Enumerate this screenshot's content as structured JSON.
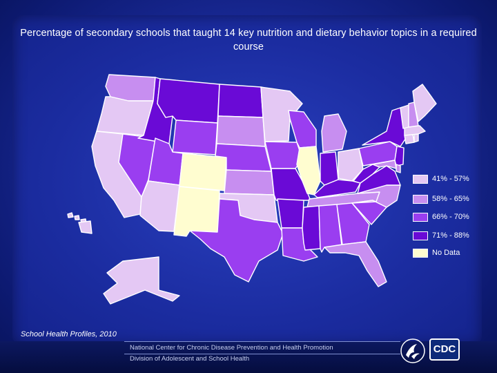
{
  "slide": {
    "title": "Percentage of secondary schools that taught 14 key nutrition and dietary behavior topics in a required course",
    "source": "School Health Profiles, 2010",
    "footer_line1": "National Center for Chronic Disease Prevention and Health Promotion",
    "footer_line2": "Division of Adolescent and School Health",
    "logo_text": "CDC"
  },
  "legend": [
    {
      "label": "41% - 57%",
      "color": "#e4c8f4"
    },
    {
      "label": "58% - 65%",
      "color": "#c78ef0"
    },
    {
      "label": "66% - 70%",
      "color": "#9a3ef0"
    },
    {
      "label": "71% - 88%",
      "color": "#6a0ad6"
    },
    {
      "label": "No Data",
      "color": "#fffdd0"
    }
  ],
  "colors": {
    "c1": "#e4c8f4",
    "c2": "#c78ef0",
    "c3": "#9a3ef0",
    "c4": "#6a0ad6",
    "nodata": "#fffdd0"
  },
  "state_categories": {
    "WA": "c2",
    "OR": "c1",
    "CA": "c1",
    "NV": "c3",
    "ID": "c4",
    "MT": "c4",
    "WY": "c3",
    "UT": "c3",
    "AZ": "c1",
    "CO": "nodata",
    "NM": "nodata",
    "ND": "c4",
    "SD": "c2",
    "NE": "c3",
    "KS": "c2",
    "OK": "c1",
    "TX": "c3",
    "MN": "c1",
    "IA": "c3",
    "MO": "c4",
    "AR": "c4",
    "LA": "c3",
    "WI": "c3",
    "IL": "nodata",
    "MS": "c4",
    "MI": "c2",
    "IN": "c4",
    "KY": "c4",
    "TN": "c2",
    "AL": "c3",
    "GA": "c3",
    "FL": "c2",
    "OH": "c1",
    "WV": "c4",
    "VA": "c4",
    "NC": "c2",
    "SC": "c3",
    "PA": "c3",
    "NY": "c4",
    "NJ": "c4",
    "MD": "c2",
    "DE": "c2",
    "CT": "c1",
    "RI": "c1",
    "MA": "c1",
    "VT": "c1",
    "NH": "c2",
    "ME": "c1",
    "AK": "c1",
    "HI": "c1"
  }
}
